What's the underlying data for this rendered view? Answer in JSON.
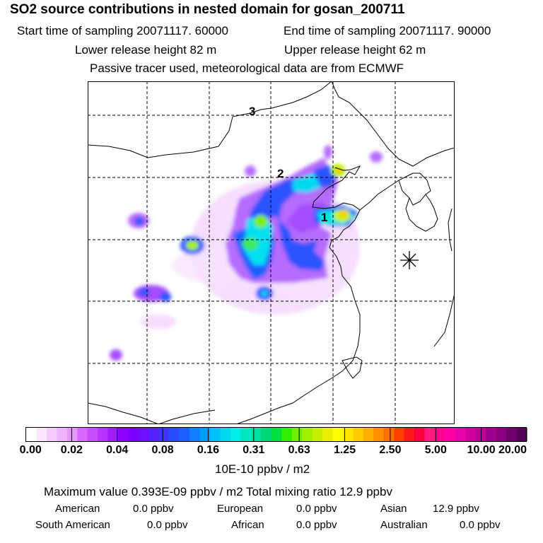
{
  "header": {
    "title": "SO2 source contributions in nested domain for gosan_200711",
    "start_label": "Start time of sampling 20071117. 60000",
    "end_label": "End time of sampling 20071117. 90000",
    "lower_label": "Lower release height   82 m",
    "upper_label": "Upper release height   62 m",
    "note": "Passive tracer used, meteorological data are from ECMWF"
  },
  "map": {
    "markers": [
      "1",
      "2",
      "3"
    ],
    "receptor_icon": "asterisk-receptor-icon"
  },
  "colorbar": {
    "ticks": [
      "0.00",
      "0.02",
      "0.04",
      "0.08",
      "0.16",
      "0.31",
      "0.63",
      "1.25",
      "2.50",
      "5.00",
      "10.00",
      "20.00"
    ],
    "colors": [
      "#ffffff",
      "#fbe6ff",
      "#f5ccff",
      "#eeb3ff",
      "#e699ff",
      "#d966ff",
      "#c94dff",
      "#b833ff",
      "#a31aff",
      "#8c00ff",
      "#7a00ff",
      "#6a10ff",
      "#5522ff",
      "#3d35ff",
      "#2a4aff",
      "#1a60ff",
      "#1080ff",
      "#00a0ff",
      "#00c0ff",
      "#00d8f0",
      "#00f0e8",
      "#00e8c0",
      "#00e0a0",
      "#00d878",
      "#00e040",
      "#30f000",
      "#70f000",
      "#a0f000",
      "#c8f000",
      "#e8f000",
      "#ffff00",
      "#ffe600",
      "#ffcc00",
      "#ffb000",
      "#ff9000",
      "#ff7000",
      "#ff4000",
      "#ff1a1a",
      "#ff0040",
      "#ff1a80",
      "#ff0090",
      "#ff00a8",
      "#e800a8",
      "#d000a0",
      "#b80098",
      "#a00090",
      "#880080",
      "#700070",
      "#580058"
    ],
    "units": "10E-10 ppbv / m2"
  },
  "summary": {
    "max_line": "Maximum value  0.393E-09 ppbv / m2      Total mixing ratio        12.9 ppbv",
    "rows": [
      [
        {
          "label": "American",
          "value": "0.0 ppbv"
        },
        {
          "label": "European",
          "value": "0.0 ppbv"
        },
        {
          "label": "Asian",
          "value": "12.9 ppbv"
        }
      ],
      [
        {
          "label": "South American",
          "value": "0.0 ppbv"
        },
        {
          "label": "African",
          "value": "0.0 ppbv"
        },
        {
          "label": "Australian",
          "value": "0.0 ppbv"
        }
      ]
    ]
  }
}
